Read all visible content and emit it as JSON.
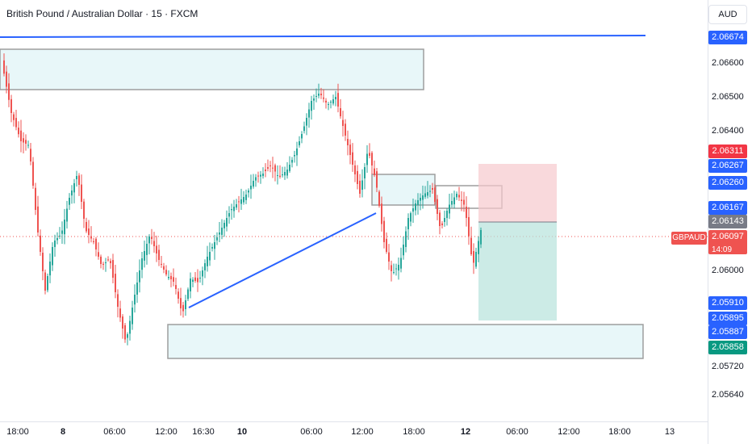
{
  "header": {
    "title": "British Pound / Australian Dollar · 15 · FXCM"
  },
  "axis": {
    "currency": "AUD",
    "price_ticks": [
      "2.06600",
      "2.06500",
      "2.06400",
      "2.06000",
      "2.05720",
      "2.05640"
    ],
    "time_labels": [
      {
        "text": "18:00",
        "bold": false
      },
      {
        "text": "8",
        "bold": true
      },
      {
        "text": "06:00",
        "bold": false
      },
      {
        "text": "12:00",
        "bold": false
      },
      {
        "text": "16:30",
        "bold": false
      },
      {
        "text": "10",
        "bold": true
      },
      {
        "text": "06:00",
        "bold": false
      },
      {
        "text": "12:00",
        "bold": false
      },
      {
        "text": "18:00",
        "bold": false
      },
      {
        "text": "12",
        "bold": true
      },
      {
        "text": "06:00",
        "bold": false
      },
      {
        "text": "12:00",
        "bold": false
      },
      {
        "text": "18:00",
        "bold": false
      },
      {
        "text": "13",
        "bold": false
      }
    ]
  },
  "price_tags": [
    {
      "text": "2.06674",
      "color": "#2962ff"
    },
    {
      "text": "2.06311",
      "color": "#f23645"
    },
    {
      "text": "2.06267",
      "color": "#2962ff"
    },
    {
      "text": "2.06260",
      "color": "#2962ff"
    },
    {
      "text": "2.06167",
      "color": "#2962ff"
    },
    {
      "text": "2.06143",
      "color": "#787b86"
    },
    {
      "text": "2.06097",
      "color": "#ef5350"
    },
    {
      "text": "2.05910",
      "color": "#2962ff"
    },
    {
      "text": "2.05895",
      "color": "#2962ff"
    },
    {
      "text": "2.05887",
      "color": "#2962ff"
    },
    {
      "text": "2.05858",
      "color": "#089981"
    }
  ],
  "symbol": {
    "name": "GBPAUD",
    "countdown": "14:09"
  },
  "colors": {
    "up": "#26a69a",
    "down": "#ef5350",
    "trendline": "#2962ff",
    "zone_fill": "#e8f7f9",
    "zone_border": "#9e9e9e"
  }
}
